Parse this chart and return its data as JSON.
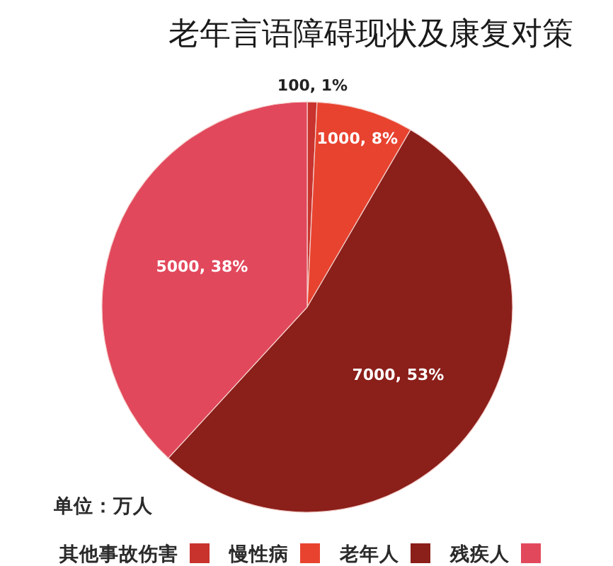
{
  "chart_data": {
    "type": "pie",
    "title": "老年言语障碍现状及康复对策",
    "categories": [
      "其他事故伤害",
      "慢性病",
      "老年人",
      "残疾人"
    ],
    "values": [
      100,
      1000,
      7000,
      5000
    ],
    "colors": [
      "#c8332e",
      "#e8432f",
      "#8b1f1a",
      "#e2485c"
    ],
    "value_labels": [
      "100, 1%",
      "1000, 8%",
      "7000, 53%",
      "5000, 38%"
    ],
    "legend": "bottom",
    "annotations": [
      "单位：万人"
    ]
  }
}
